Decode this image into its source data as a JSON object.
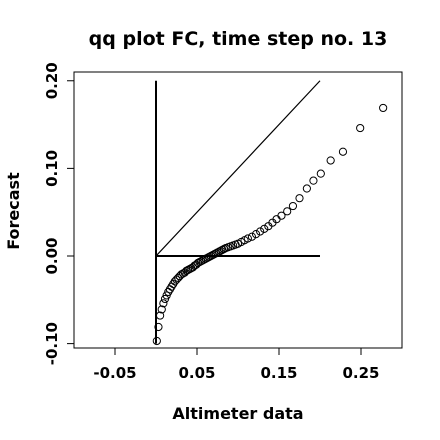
{
  "chart_data": {
    "type": "scatter",
    "title": "qq plot FC, time step no. 13",
    "xlabel": "Altimeter data",
    "ylabel": "Forecast",
    "xlim": [
      -0.1,
      0.3
    ],
    "ylim": [
      -0.105,
      0.21
    ],
    "x_ticks": [
      -0.05,
      0.05,
      0.15,
      0.25
    ],
    "x_tick_labels": [
      "-0.05",
      "0.05",
      "0.15",
      "0.25"
    ],
    "y_ticks": [
      -0.1,
      0.0,
      0.1,
      0.2
    ],
    "y_tick_labels": [
      "-0.10",
      "0.00",
      "0.10",
      "0.20"
    ],
    "grid": false,
    "legend": "none",
    "reference_lines": [
      {
        "kind": "diagonal",
        "x": [
          0.0,
          0.2
        ],
        "y": [
          0.0,
          0.2
        ]
      },
      {
        "kind": "horizontal",
        "x": [
          0.0,
          0.2
        ],
        "y": [
          0.0,
          0.0
        ]
      },
      {
        "kind": "vertical",
        "x": [
          0.0,
          0.0
        ],
        "y": [
          -0.1,
          0.2
        ]
      }
    ],
    "points": {
      "x": [
        0.001,
        0.003,
        0.005,
        0.007,
        0.009,
        0.011,
        0.013,
        0.015,
        0.017,
        0.019,
        0.021,
        0.023,
        0.025,
        0.027,
        0.029,
        0.031,
        0.033,
        0.035,
        0.037,
        0.039,
        0.041,
        0.043,
        0.045,
        0.047,
        0.049,
        0.051,
        0.053,
        0.055,
        0.057,
        0.059,
        0.061,
        0.063,
        0.065,
        0.067,
        0.069,
        0.071,
        0.073,
        0.075,
        0.077,
        0.079,
        0.081,
        0.083,
        0.085,
        0.088,
        0.091,
        0.094,
        0.097,
        0.1,
        0.104,
        0.108,
        0.112,
        0.117,
        0.122,
        0.127,
        0.132,
        0.137,
        0.142,
        0.147,
        0.153,
        0.16,
        0.167,
        0.175,
        0.184,
        0.192,
        0.201,
        0.213,
        0.228,
        0.249,
        0.277
      ],
      "y": [
        -0.097,
        -0.081,
        -0.068,
        -0.061,
        -0.054,
        -0.049,
        -0.045,
        -0.041,
        -0.038,
        -0.035,
        -0.032,
        -0.029,
        -0.027,
        -0.025,
        -0.023,
        -0.021,
        -0.02,
        -0.019,
        -0.017,
        -0.016,
        -0.015,
        -0.014,
        -0.013,
        -0.011,
        -0.01,
        -0.008,
        -0.007,
        -0.006,
        -0.005,
        -0.004,
        -0.003,
        -0.002,
        -0.001,
        0.0,
        0.001,
        0.002,
        0.003,
        0.004,
        0.005,
        0.006,
        0.007,
        0.008,
        0.009,
        0.01,
        0.011,
        0.012,
        0.013,
        0.014,
        0.016,
        0.018,
        0.02,
        0.022,
        0.025,
        0.028,
        0.031,
        0.034,
        0.038,
        0.042,
        0.046,
        0.051,
        0.057,
        0.066,
        0.077,
        0.086,
        0.094,
        0.109,
        0.119,
        0.146,
        0.169
      ]
    }
  }
}
